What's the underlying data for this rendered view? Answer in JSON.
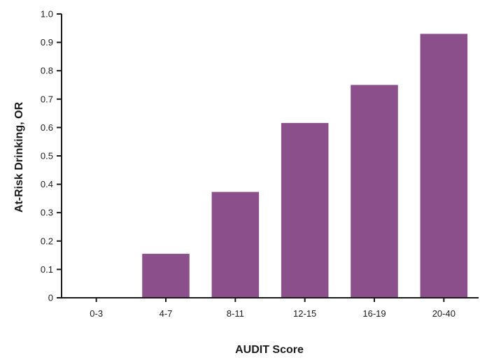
{
  "chart_data": {
    "type": "bar",
    "categories": [
      "0-3",
      "4-7",
      "8-11",
      "12-15",
      "16-19",
      "20-40"
    ],
    "values": [
      0.0,
      0.155,
      0.373,
      0.616,
      0.75,
      0.93
    ],
    "xlabel": "AUDIT Score",
    "ylabel": "At-Risk Drinking, OR",
    "ylim": [
      0,
      1.0
    ],
    "yticks": [
      0,
      0.1,
      0.2,
      0.3,
      0.4,
      0.5,
      0.6,
      0.7,
      0.8,
      0.9,
      1.0
    ],
    "ytick_labels": [
      "0",
      "0.1",
      "0.2",
      "0.3",
      "0.4",
      "0.5",
      "0.6",
      "0.7",
      "0.8",
      "0.9",
      "1.0"
    ],
    "bar_color": "#8b4f8b",
    "grid": false,
    "legend": "none"
  }
}
